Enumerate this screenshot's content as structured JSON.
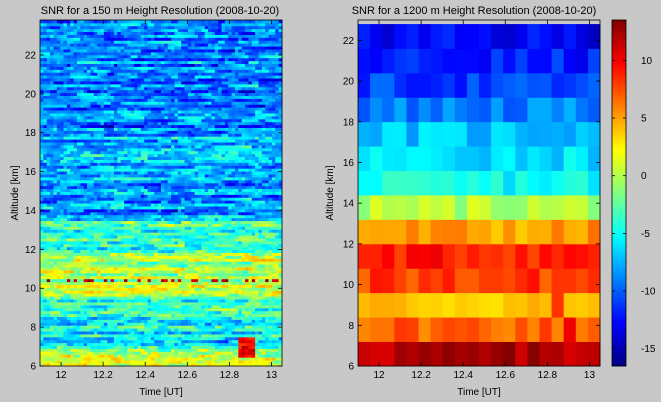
{
  "chart_data": [
    {
      "type": "heatmap",
      "title": "SNR for a 150 m Height Resolution (2008-10-20)",
      "xlabel": "Time [UT]",
      "ylabel": "Altitude [km]",
      "xlim": [
        11.9,
        13.05
      ],
      "ylim": [
        6,
        23.8
      ],
      "xticks": [
        "12",
        "12.2",
        "12.4",
        "12.6",
        "12.8",
        "13"
      ],
      "yticks": [
        "6",
        "8",
        "10",
        "12",
        "14",
        "16",
        "18",
        "20",
        "22"
      ],
      "bands": [
        {
          "from": 6,
          "to": 6.8,
          "snr": 0
        },
        {
          "from": 6.8,
          "to": 8.2,
          "snr": -5
        },
        {
          "from": 8.2,
          "to": 9.6,
          "snr": -4
        },
        {
          "from": 9.6,
          "to": 11.8,
          "snr": 0
        },
        {
          "from": 11.8,
          "to": 13.5,
          "snr": -4
        },
        {
          "from": 13.5,
          "to": 18,
          "snr": -8
        },
        {
          "from": 18,
          "to": 23.8,
          "snr": -9
        }
      ]
    },
    {
      "type": "heatmap",
      "title": "SNR for a 1200 m Height Resolution (2008-10-20)",
      "xlabel": "Time [UT]",
      "ylabel": "Altitude [km]",
      "xlim": [
        11.9,
        13.05
      ],
      "ylim": [
        6,
        23
      ],
      "xticks": [
        "12",
        "12.2",
        "12.4",
        "12.6",
        "12.8",
        "13"
      ],
      "yticks": [
        "6",
        "8",
        "10",
        "12",
        "14",
        "16",
        "18",
        "20",
        "22"
      ],
      "rows": [
        {
          "altitude": 6.6,
          "snr": 12
        },
        {
          "altitude": 7.8,
          "snr": 7
        },
        {
          "altitude": 9.0,
          "snr": 4
        },
        {
          "altitude": 10.2,
          "snr": 8
        },
        {
          "altitude": 11.4,
          "snr": 9
        },
        {
          "altitude": 12.6,
          "snr": 5
        },
        {
          "altitude": 13.8,
          "snr": 0
        },
        {
          "altitude": 15.0,
          "snr": -5
        },
        {
          "altitude": 16.2,
          "snr": -6
        },
        {
          "altitude": 17.4,
          "snr": -7
        },
        {
          "altitude": 18.6,
          "snr": -9
        },
        {
          "altitude": 19.8,
          "snr": -11
        },
        {
          "altitude": 21.0,
          "snr": -12
        },
        {
          "altitude": 22.2,
          "snr": -13
        }
      ]
    }
  ],
  "colorbar": {
    "range": [
      -16.5,
      13.5
    ],
    "ticks": [
      "10",
      "5",
      "0",
      "-5",
      "-10",
      "-15"
    ]
  }
}
